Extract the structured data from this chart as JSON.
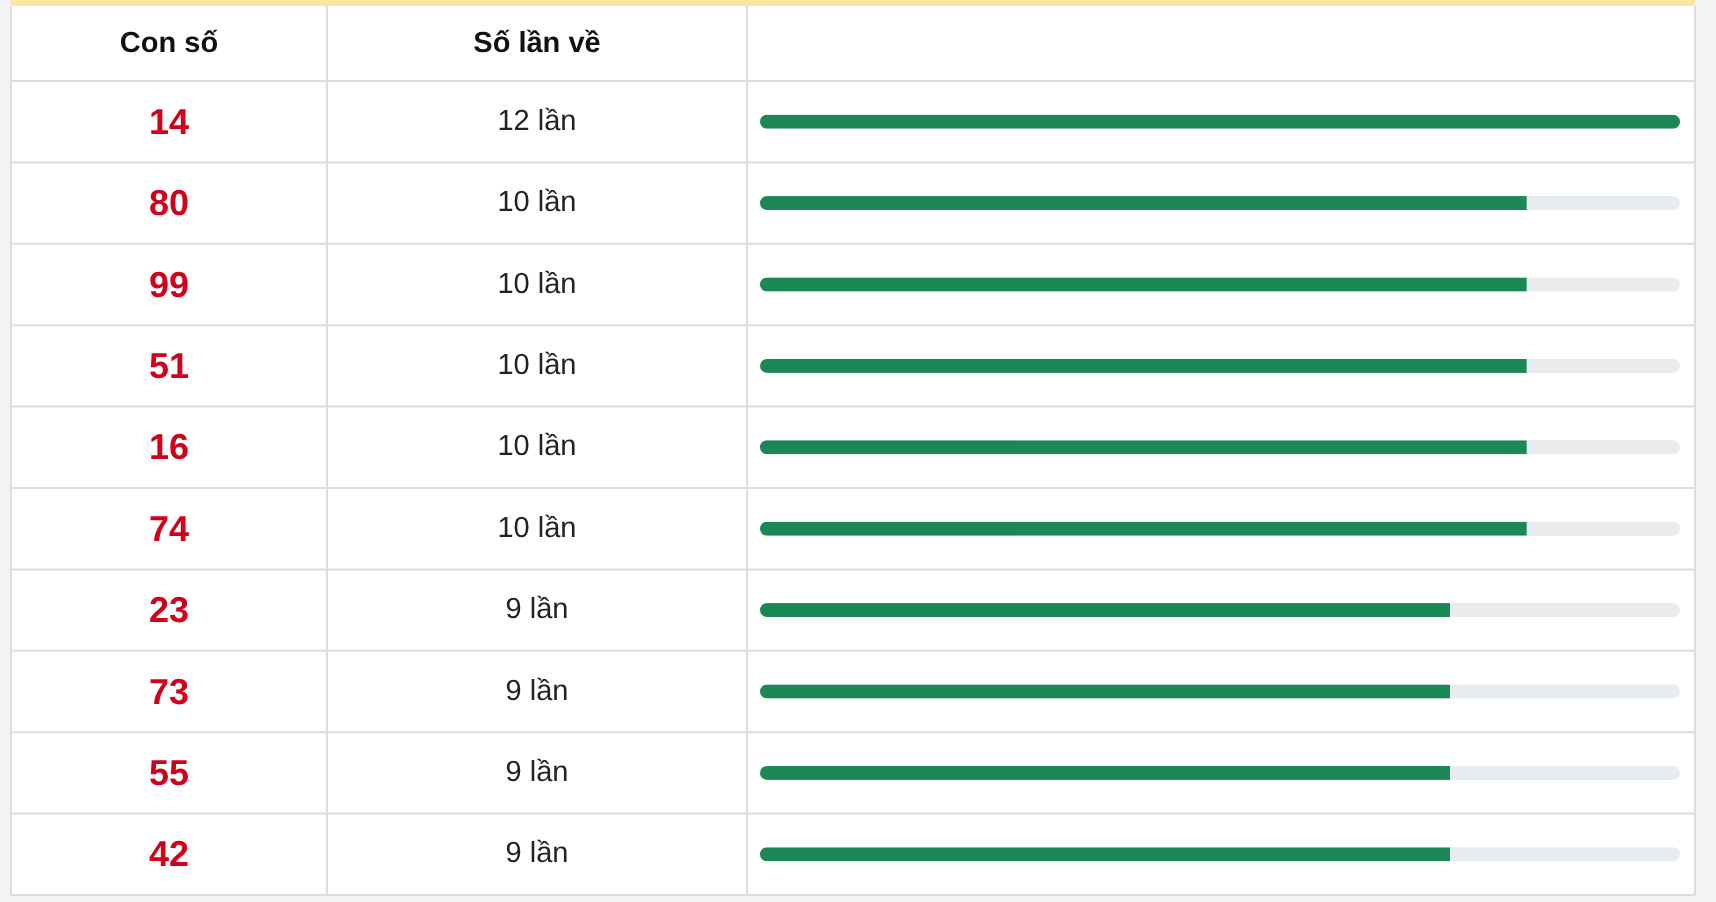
{
  "chart_data": {
    "type": "bar",
    "orientation": "horizontal",
    "ylabel": "Con số",
    "xlabel": "Số lần về",
    "categories": [
      "14",
      "80",
      "99",
      "51",
      "16",
      "74",
      "23",
      "73",
      "55",
      "42"
    ],
    "values": [
      12,
      10,
      10,
      10,
      10,
      10,
      9,
      9,
      9,
      9
    ],
    "value_labels": [
      "12 lần",
      "10 lần",
      "10 lần",
      "10 lần",
      "10 lần",
      "10 lần",
      "9 lần",
      "9 lần",
      "9 lần",
      "9 lần"
    ],
    "color": "#1b8755",
    "xlim": [
      0,
      12
    ]
  }
}
